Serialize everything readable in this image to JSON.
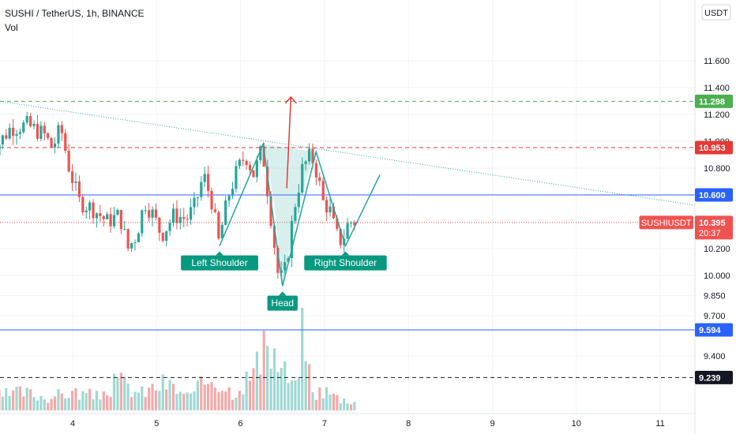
{
  "header": {
    "symbol_line": "SUSHI / TetherUS, 1h, BINANCE",
    "volume_label": "Vol"
  },
  "price_axis": {
    "currency_badge": "USDT"
  },
  "colors": {
    "up": "#26a69a",
    "down": "#ef5350",
    "up_volume": "#9fd9d3",
    "down_volume": "#f5a9a9",
    "blue_line": "#2962ff",
    "green_dashed": "#4caf50",
    "red_dashed": "#e53935",
    "trendline": "#26a69a",
    "pattern": "#26a69a",
    "arrow": "#e53935",
    "label_bg": "#089981"
  },
  "chart_data": {
    "type": "candlestick",
    "x_axis": {
      "ticks": [
        "4",
        "5",
        "6",
        "7",
        "8",
        "9",
        "10",
        "11"
      ]
    },
    "y_axis": {
      "ticks": [
        "11.600",
        "11.400",
        "11.200",
        "11.000",
        "10.800",
        "10.200",
        "10.000",
        "9.850",
        "9.700",
        "9.400"
      ],
      "range": [
        9.2,
        11.75
      ]
    },
    "price_badges": [
      {
        "label": "11.298",
        "style": "green"
      },
      {
        "label": "10.953",
        "style": "red"
      },
      {
        "label": "10.600",
        "style": "blue"
      },
      {
        "label": "10.395",
        "sublabel": "20:37",
        "symbol": "SUSHIUSDT",
        "style": "current"
      },
      {
        "label": "9.594",
        "style": "blue"
      },
      {
        "label": "9.239",
        "style": "black"
      }
    ],
    "horizontal_lines": [
      {
        "price": 11.298,
        "style": "dashed",
        "color": "green"
      },
      {
        "price": 10.953,
        "style": "dashed",
        "color": "red"
      },
      {
        "price": 10.6,
        "style": "solid",
        "color": "blue"
      },
      {
        "price": 10.395,
        "style": "dotted",
        "color": "red"
      },
      {
        "price": 9.594,
        "style": "solid",
        "color": "blue"
      },
      {
        "price": 9.239,
        "style": "dashed",
        "color": "black"
      }
    ],
    "trendline": {
      "from": {
        "x": 3.0,
        "y": 11.31
      },
      "to": {
        "x": 11.45,
        "y": 10.52
      }
    },
    "pattern_polyline": [
      {
        "x": 5.75,
        "y": 10.22
      },
      {
        "x": 6.27,
        "y": 10.98
      },
      {
        "x": 6.5,
        "y": 9.92
      },
      {
        "x": 6.9,
        "y": 10.92
      },
      {
        "x": 7.25,
        "y": 10.22
      },
      {
        "x": 7.66,
        "y": 10.75
      }
    ],
    "head_fill": [
      {
        "x": 6.27,
        "y": 10.98
      },
      {
        "x": 6.9,
        "y": 10.92
      },
      {
        "x": 6.7,
        "y": 10.58
      },
      {
        "x": 6.5,
        "y": 9.92
      },
      {
        "x": 6.4,
        "y": 10.55
      }
    ],
    "arrow": {
      "from": {
        "x": 6.55,
        "y": 10.65
      },
      "to": {
        "x": 6.6,
        "y": 11.33
      }
    },
    "annotations": [
      {
        "text": "Left Shoulder",
        "x": 5.75,
        "y": 10.22,
        "position": "below"
      },
      {
        "text": "Head",
        "x": 6.5,
        "y": 9.92,
        "position": "below"
      },
      {
        "text": "Right Shoulder",
        "x": 7.25,
        "y": 10.22,
        "position": "below"
      }
    ],
    "candle_anchors": [
      [
        3.0,
        10.78
      ],
      [
        3.12,
        10.95
      ],
      [
        3.3,
        11.1
      ],
      [
        3.5,
        11.12
      ],
      [
        3.7,
        11.05
      ],
      [
        3.8,
        10.95
      ],
      [
        3.9,
        11.1
      ],
      [
        4.0,
        10.8
      ],
      [
        4.12,
        10.55
      ],
      [
        4.28,
        10.5
      ],
      [
        4.45,
        10.4
      ],
      [
        4.6,
        10.45
      ],
      [
        4.7,
        10.2
      ],
      [
        4.8,
        10.3
      ],
      [
        4.9,
        10.55
      ],
      [
        5.0,
        10.45
      ],
      [
        5.1,
        10.3
      ],
      [
        5.25,
        10.45
      ],
      [
        5.4,
        10.42
      ],
      [
        5.5,
        10.52
      ],
      [
        5.6,
        10.75
      ],
      [
        5.7,
        10.55
      ],
      [
        5.78,
        10.25
      ],
      [
        5.9,
        10.6
      ],
      [
        6.0,
        10.78
      ],
      [
        6.1,
        10.9
      ],
      [
        6.2,
        10.75
      ],
      [
        6.3,
        10.95
      ],
      [
        6.38,
        10.55
      ],
      [
        6.45,
        10.2
      ],
      [
        6.5,
        9.95
      ],
      [
        6.58,
        10.05
      ],
      [
        6.68,
        10.5
      ],
      [
        6.78,
        10.8
      ],
      [
        6.88,
        10.9
      ],
      [
        6.96,
        10.75
      ],
      [
        7.02,
        10.55
      ],
      [
        7.1,
        10.5
      ],
      [
        7.18,
        10.3
      ],
      [
        7.25,
        10.25
      ],
      [
        7.33,
        10.4
      ]
    ],
    "volume_anchors": [
      [
        3.05,
        0.15
      ],
      [
        3.4,
        0.2
      ],
      [
        3.7,
        0.14
      ],
      [
        4.0,
        0.2
      ],
      [
        4.3,
        0.15
      ],
      [
        4.55,
        0.32
      ],
      [
        4.8,
        0.18
      ],
      [
        5.1,
        0.3
      ],
      [
        5.4,
        0.14
      ],
      [
        5.65,
        0.38
      ],
      [
        5.9,
        0.2
      ],
      [
        6.1,
        0.36
      ],
      [
        6.28,
        0.6
      ],
      [
        6.35,
        0.7
      ],
      [
        6.45,
        0.5
      ],
      [
        6.55,
        0.38
      ],
      [
        6.65,
        0.22
      ],
      [
        6.74,
        1.0
      ],
      [
        6.85,
        0.18
      ],
      [
        7.0,
        0.22
      ],
      [
        7.2,
        0.12
      ],
      [
        7.38,
        0.1
      ]
    ]
  }
}
